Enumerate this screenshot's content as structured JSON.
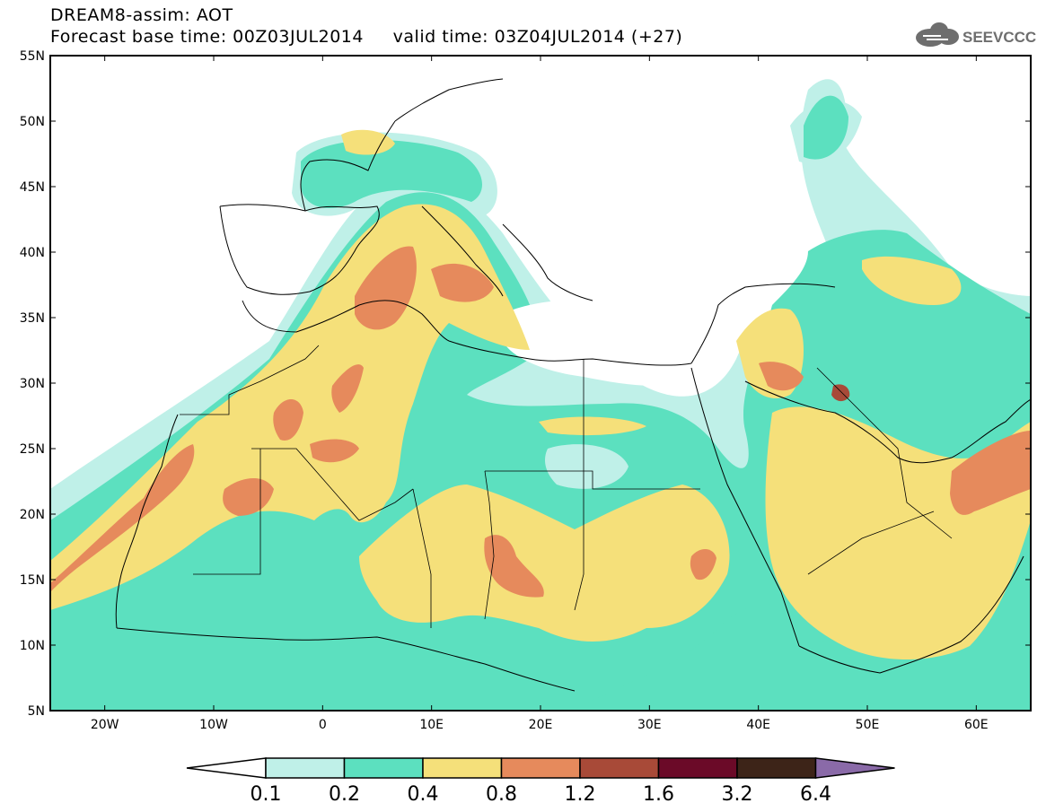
{
  "header": {
    "title_line1": "DREAM8-assim: AOT",
    "title_line2": "Forecast base time: 00Z03JUL2014     valid time: 03Z04JUL2014 (+27)",
    "logo_text": "SEEVCCC",
    "logo_icon": "cloud-icon"
  },
  "map": {
    "lon_range": [
      -25,
      65
    ],
    "lat_range": [
      5,
      55
    ],
    "lat_ticks": [
      "55N",
      "50N",
      "45N",
      "40N",
      "35N",
      "30N",
      "25N",
      "20N",
      "15N",
      "10N",
      "5N"
    ],
    "lon_ticks": [
      "20W",
      "10W",
      "0",
      "10E",
      "20E",
      "30E",
      "40E",
      "50E",
      "60E"
    ]
  },
  "colorbar": {
    "labels": [
      "0.1",
      "0.2",
      "0.4",
      "0.8",
      "1.2",
      "1.6",
      "3.2",
      "6.4"
    ],
    "colors": [
      "#ffffff",
      "#bff0e8",
      "#5ce0bf",
      "#f5e07a",
      "#e68a5c",
      "#a84a38",
      "#6b0a28",
      "#3d2418",
      "#8a6aa8"
    ]
  }
}
